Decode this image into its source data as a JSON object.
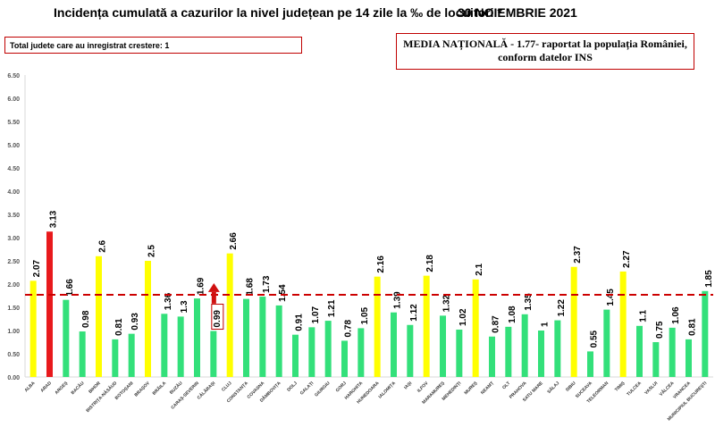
{
  "header": {
    "title": "Incidența cumulată a cazurilor la nivel județean pe 14 zile la ‰ de locuitori *",
    "date": "30 NOIEMBRIE 2021"
  },
  "info_left": "Total judete care au inregistrat crestere: 1",
  "info_right": {
    "line1": "MEDIA NAȚIONALĂ - 1.77-  raportat la populația României,",
    "line2": "conform datelor INS"
  },
  "colors": {
    "green": "#33e07a",
    "yellow": "#ffff00",
    "red": "#e8191c",
    "reference_line": "#cc0000",
    "annotation_box": "#c00000"
  },
  "chart_data": {
    "type": "bar",
    "ylim": [
      0,
      6.5
    ],
    "yticks": [
      "0.00",
      "0.50",
      "1.00",
      "1.50",
      "2.00",
      "2.50",
      "3.00",
      "3.50",
      "4.00",
      "4.50",
      "5.00",
      "5.50",
      "6.00",
      "6.50"
    ],
    "grid": false,
    "reference_line": {
      "value": 1.77,
      "style": "dashed",
      "color": "#cc0000"
    },
    "categories": [
      "ALBA",
      "ARAD",
      "ARGEȘ",
      "BACĂU",
      "BIHOR",
      "BISTRIȚA-NĂSĂUD",
      "BOTOȘANI",
      "BRAȘOV",
      "BRĂILA",
      "BUZĂU",
      "CARAȘ-SEVERIN",
      "CĂLĂRAȘI",
      "CLUJ",
      "CONSTANȚA",
      "COVASNA",
      "DÂMBOVIȚA",
      "DOLJ",
      "GALAȚI",
      "GIURGIU",
      "GORJ",
      "HARGHITA",
      "HUNEDOARA",
      "IALOMIȚA",
      "IAȘI",
      "ILFOV",
      "MARAMUREȘ",
      "MEHEDINȚI",
      "MUREȘ",
      "NEAMȚ",
      "OLT",
      "PRAHOVA",
      "SATU MARE",
      "SĂLAJ",
      "SIBIU",
      "SUCEAVA",
      "TELEORMAN",
      "TIMIȘ",
      "TULCEA",
      "VASLUI",
      "VÂLCEA",
      "VRANCEA",
      "MUNICIPIUL BUCUREȘTI"
    ],
    "values": [
      2.07,
      3.13,
      1.66,
      0.98,
      2.6,
      0.81,
      0.93,
      2.5,
      1.36,
      1.3,
      1.69,
      0.99,
      2.66,
      1.68,
      1.73,
      1.54,
      0.91,
      1.07,
      1.21,
      0.78,
      1.05,
      2.16,
      1.39,
      1.12,
      2.18,
      1.32,
      1.02,
      2.1,
      0.87,
      1.08,
      1.35,
      1,
      1.22,
      2.37,
      0.55,
      1.45,
      2.27,
      1.1,
      0.75,
      1.06,
      0.81,
      1.85
    ],
    "labels": [
      "2.07",
      "3.13",
      "1.66",
      "0.98",
      "2.6",
      "0.81",
      "0.93",
      "2.5",
      "1.36",
      "1.3",
      "1.69",
      "0.99",
      "2.66",
      "1.68",
      "1.73",
      "1.54",
      "0.91",
      "1.07",
      "1.21",
      "0.78",
      "1.05",
      "2.16",
      "1.39",
      "1.12",
      "2.18",
      "1.32",
      "1.02",
      "2.1",
      "0.87",
      "1.08",
      "1.35",
      "1",
      "1.22",
      "2.37",
      "0.55",
      "1.45",
      "2.27",
      "1.1",
      "0.75",
      "1.06",
      "0.81",
      "1.85"
    ],
    "bar_colors": [
      "yellow",
      "red",
      "green",
      "green",
      "yellow",
      "green",
      "green",
      "yellow",
      "green",
      "green",
      "green",
      "green",
      "yellow",
      "green",
      "green",
      "green",
      "green",
      "green",
      "green",
      "green",
      "green",
      "yellow",
      "green",
      "green",
      "yellow",
      "green",
      "green",
      "yellow",
      "green",
      "green",
      "green",
      "green",
      "green",
      "yellow",
      "green",
      "green",
      "yellow",
      "green",
      "green",
      "green",
      "green",
      "green"
    ],
    "increase_marker": {
      "category": "CĂLĂRAȘI"
    }
  }
}
